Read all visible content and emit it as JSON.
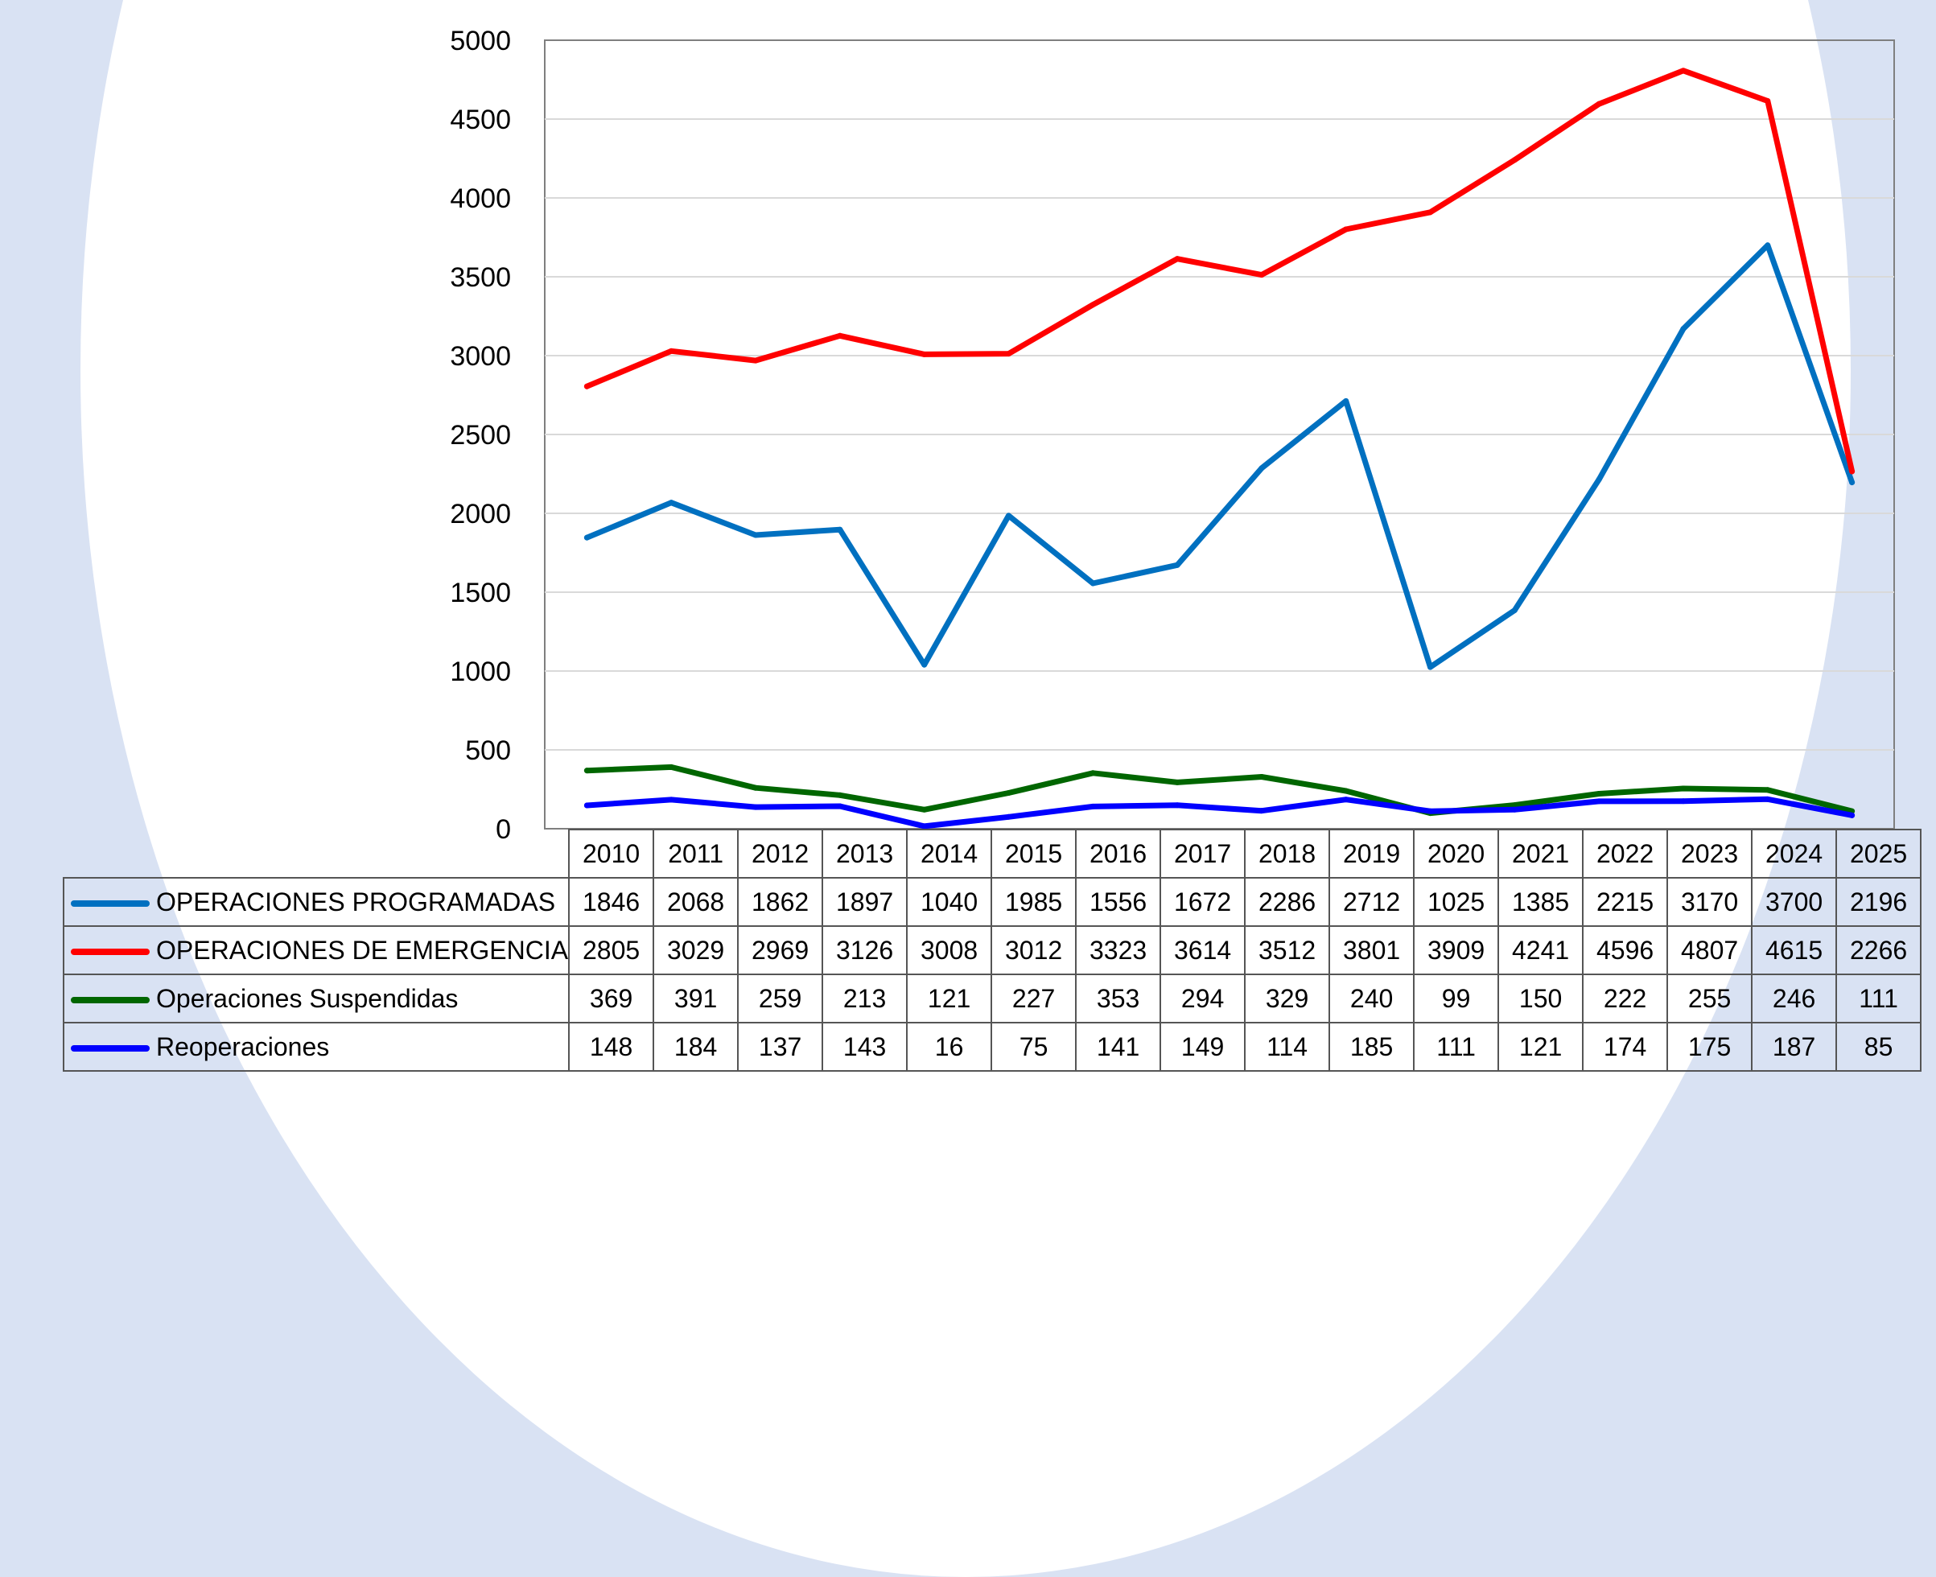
{
  "chart_data": {
    "type": "line",
    "title": "",
    "xlabel": "",
    "ylabel": "",
    "ylim": [
      0,
      5000
    ],
    "yticks": [
      0,
      500,
      1000,
      1500,
      2000,
      2500,
      3000,
      3500,
      4000,
      4500,
      5000
    ],
    "grid": true,
    "legend": "data-table",
    "categories": [
      "2010",
      "2011",
      "2012",
      "2013",
      "2014",
      "2015",
      "2016",
      "2017",
      "2018",
      "2019",
      "2020",
      "2021",
      "2022",
      "2023",
      "2024",
      "2025"
    ],
    "series": [
      {
        "name": "OPERACIONES PROGRAMADAS",
        "color": "#0070c0",
        "values": [
          1846,
          2068,
          1862,
          1897,
          1040,
          1985,
          1556,
          1672,
          2286,
          2712,
          1025,
          1385,
          2215,
          3170,
          3700,
          2196
        ]
      },
      {
        "name": "OPERACIONES DE EMERGENCIA",
        "color": "#ff0000",
        "values": [
          2805,
          3029,
          2969,
          3126,
          3008,
          3012,
          3323,
          3614,
          3512,
          3801,
          3909,
          4241,
          4596,
          4807,
          4615,
          2266
        ]
      },
      {
        "name": "Operaciones Suspendidas",
        "color": "#006600",
        "values": [
          369,
          391,
          259,
          213,
          121,
          227,
          353,
          294,
          329,
          240,
          99,
          150,
          222,
          255,
          246,
          111
        ]
      },
      {
        "name": "Reoperaciones",
        "color": "#0000ff",
        "values": [
          148,
          184,
          137,
          143,
          16,
          75,
          141,
          149,
          114,
          185,
          111,
          121,
          174,
          175,
          187,
          85
        ]
      }
    ]
  }
}
